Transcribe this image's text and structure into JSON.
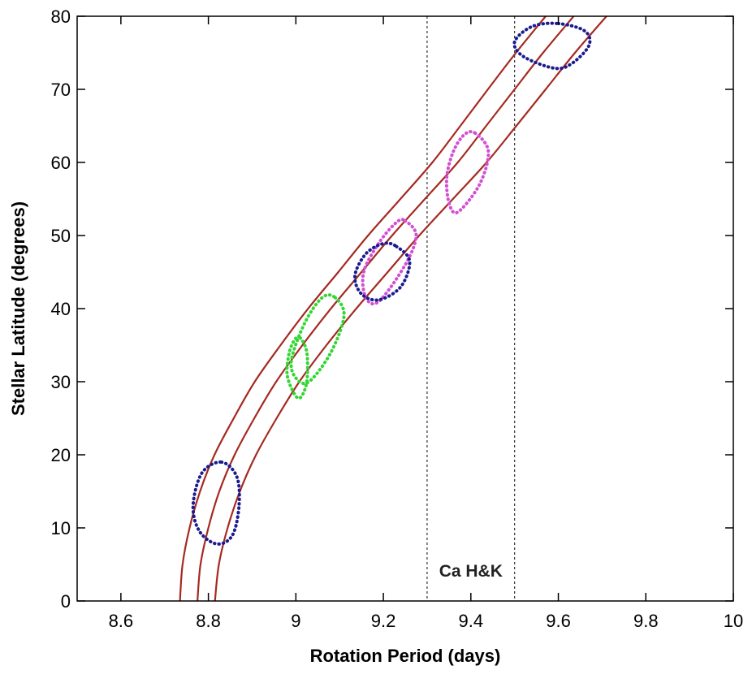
{
  "chart_data": {
    "type": "curves",
    "xlabel": "Rotation Period (days)",
    "ylabel": "Stellar Latitude (degrees)",
    "xlim": [
      8.5,
      10
    ],
    "ylim": [
      0,
      80
    ],
    "xticks": [
      8.6,
      8.8,
      9,
      9.2,
      9.4,
      9.6,
      9.8,
      10
    ],
    "yticks": [
      0,
      10,
      20,
      30,
      40,
      50,
      60,
      70,
      80
    ],
    "curve_color": "#a52a22",
    "curves": [
      {
        "x": [
          8.735,
          8.741,
          8.757,
          8.781,
          8.814,
          8.858,
          8.906,
          8.965,
          9.028,
          9.097,
          9.165,
          9.239,
          9.312,
          9.376,
          9.439,
          9.503,
          9.571
        ],
        "y": [
          0,
          5,
          10,
          15,
          20,
          25,
          30,
          35,
          40,
          45,
          50,
          55,
          60,
          65,
          70,
          75,
          80
        ]
      },
      {
        "x": [
          8.775,
          8.782,
          8.8,
          8.825,
          8.86,
          8.905,
          8.955,
          9.015,
          9.08,
          9.15,
          9.22,
          9.295,
          9.37,
          9.435,
          9.5,
          9.565,
          9.635
        ],
        "y": [
          0,
          5,
          10,
          15,
          20,
          25,
          30,
          35,
          40,
          45,
          50,
          55,
          60,
          65,
          70,
          75,
          80
        ]
      },
      {
        "x": [
          8.815,
          8.824,
          8.844,
          8.872,
          8.909,
          8.956,
          9.008,
          9.07,
          9.138,
          9.21,
          9.282,
          9.359,
          9.436,
          9.504,
          9.571,
          9.638,
          9.71
        ],
        "y": [
          0,
          5,
          10,
          15,
          20,
          25,
          30,
          35,
          40,
          45,
          50,
          55,
          60,
          65,
          70,
          75,
          80
        ]
      }
    ],
    "contours": [
      {
        "color": "#1b1b8f",
        "x": [
          8.83,
          8.865,
          8.87,
          8.855,
          8.82,
          8.78,
          8.765,
          8.785
        ],
        "y": [
          19,
          17,
          13,
          9,
          7.8,
          9.5,
          13,
          17.5
        ]
      },
      {
        "color": "#33d633",
        "x": [
          9.09,
          9.11,
          9.08,
          9.03,
          9.0,
          8.99,
          9.02,
          9.06
        ],
        "y": [
          41.5,
          39,
          34,
          30,
          30.5,
          33,
          38,
          41.5
        ]
      },
      {
        "color": "#33d633",
        "x": [
          9.01,
          9.025,
          9.025,
          9.01,
          8.995,
          8.98,
          8.985,
          8.998
        ],
        "y": [
          36,
          34,
          30,
          27.8,
          28.5,
          31,
          34,
          35.8
        ]
      },
      {
        "color": "#d24fd2",
        "x": [
          9.25,
          9.275,
          9.25,
          9.19,
          9.16,
          9.155,
          9.19,
          9.23
        ],
        "y": [
          52,
          50,
          46,
          41,
          41.5,
          45,
          49,
          51.8
        ]
      },
      {
        "color": "#1b1b8f",
        "x": [
          9.23,
          9.26,
          9.24,
          9.19,
          9.15,
          9.135,
          9.16,
          9.2
        ],
        "y": [
          48.5,
          46.5,
          43,
          41.2,
          42,
          44.5,
          47.5,
          48.9
        ]
      },
      {
        "color": "#d24fd2",
        "x": [
          9.41,
          9.44,
          9.42,
          9.37,
          9.35,
          9.345,
          9.36,
          9.385
        ],
        "y": [
          64,
          61.5,
          57,
          53.2,
          54.5,
          58,
          61.5,
          63.8
        ]
      },
      {
        "color": "#1b1b8f",
        "x": [
          9.6,
          9.66,
          9.67,
          9.63,
          9.59,
          9.52,
          9.5,
          9.54
        ],
        "y": [
          79,
          78,
          76,
          73.5,
          72.9,
          74.5,
          76.5,
          78.6
        ]
      }
    ],
    "vlines": [
      9.3,
      9.5
    ],
    "annotation": "Ca H&K"
  }
}
